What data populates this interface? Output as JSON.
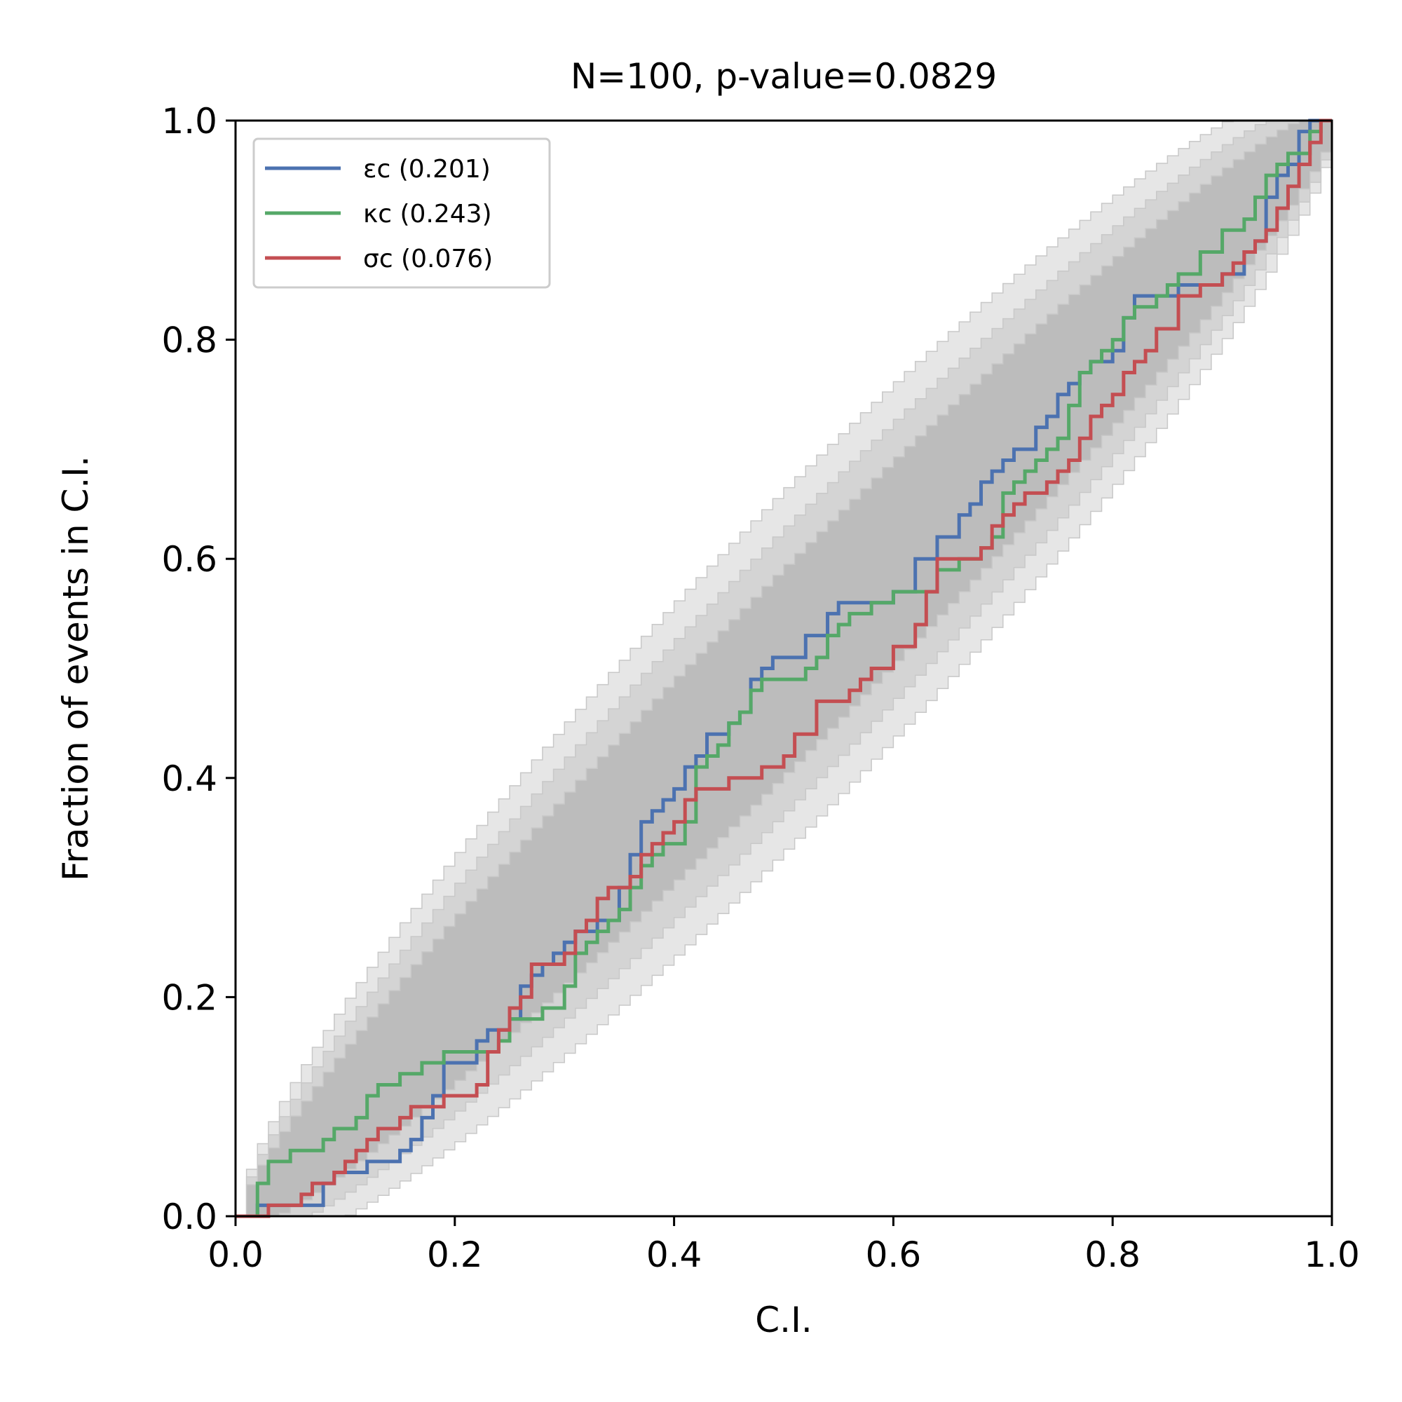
{
  "chart_data": {
    "type": "line",
    "title": "N=100, p-value=0.0829",
    "xlabel": "C.I.",
    "ylabel": "Fraction of events in C.I.",
    "xlim": [
      0,
      1
    ],
    "ylim": [
      0,
      1
    ],
    "xticks": [
      "0.0",
      "0.2",
      "0.4",
      "0.6",
      "0.8",
      "1.0"
    ],
    "yticks": [
      "0.0",
      "0.2",
      "0.4",
      "0.6",
      "0.8",
      "1.0"
    ],
    "grid": false,
    "legend_position": "top-left",
    "confidence_bands": [
      {
        "level": "outer",
        "color": "#e6e6e6"
      },
      {
        "level": "middle",
        "color": "#d4d4d4"
      },
      {
        "level": "inner",
        "color": "#bcbcbc"
      }
    ],
    "series": [
      {
        "name": "εc (0.201)",
        "color": "#4c72b0",
        "x": [
          0.0,
          0.02,
          0.03,
          0.08,
          0.09,
          0.1,
          0.12,
          0.14,
          0.15,
          0.16,
          0.17,
          0.18,
          0.19,
          0.22,
          0.23,
          0.24,
          0.25,
          0.26,
          0.27,
          0.28,
          0.29,
          0.3,
          0.31,
          0.33,
          0.35,
          0.36,
          0.37,
          0.38,
          0.39,
          0.4,
          0.41,
          0.42,
          0.43,
          0.45,
          0.46,
          0.47,
          0.48,
          0.49,
          0.5,
          0.52,
          0.54,
          0.55,
          0.57,
          0.6,
          0.62,
          0.64,
          0.66,
          0.67,
          0.68,
          0.69,
          0.7,
          0.71,
          0.72,
          0.73,
          0.74,
          0.75,
          0.76,
          0.77,
          0.78,
          0.79,
          0.8,
          0.81,
          0.82,
          0.83,
          0.84,
          0.86,
          0.88,
          0.9,
          0.92,
          0.93,
          0.94,
          0.95,
          0.96,
          0.97,
          0.98,
          0.99,
          1.0
        ],
        "y": [
          0.0,
          0.01,
          0.01,
          0.03,
          0.04,
          0.04,
          0.05,
          0.05,
          0.06,
          0.07,
          0.09,
          0.11,
          0.14,
          0.16,
          0.17,
          0.17,
          0.18,
          0.21,
          0.22,
          0.23,
          0.24,
          0.25,
          0.26,
          0.27,
          0.3,
          0.33,
          0.36,
          0.37,
          0.38,
          0.39,
          0.41,
          0.42,
          0.44,
          0.45,
          0.46,
          0.49,
          0.5,
          0.51,
          0.51,
          0.53,
          0.55,
          0.56,
          0.56,
          0.57,
          0.6,
          0.62,
          0.64,
          0.65,
          0.67,
          0.68,
          0.69,
          0.7,
          0.7,
          0.72,
          0.73,
          0.75,
          0.76,
          0.77,
          0.78,
          0.78,
          0.79,
          0.82,
          0.84,
          0.84,
          0.84,
          0.85,
          0.85,
          0.86,
          0.88,
          0.89,
          0.93,
          0.95,
          0.96,
          0.99,
          1.0,
          1.0,
          1.0
        ]
      },
      {
        "name": "κc (0.243)",
        "color": "#55a868",
        "x": [
          0.0,
          0.01,
          0.02,
          0.03,
          0.05,
          0.07,
          0.08,
          0.09,
          0.11,
          0.12,
          0.13,
          0.15,
          0.17,
          0.19,
          0.21,
          0.23,
          0.24,
          0.25,
          0.26,
          0.27,
          0.28,
          0.3,
          0.31,
          0.32,
          0.33,
          0.34,
          0.35,
          0.36,
          0.37,
          0.38,
          0.39,
          0.41,
          0.42,
          0.43,
          0.44,
          0.45,
          0.46,
          0.47,
          0.48,
          0.5,
          0.52,
          0.53,
          0.54,
          0.55,
          0.56,
          0.58,
          0.6,
          0.62,
          0.64,
          0.66,
          0.68,
          0.69,
          0.7,
          0.71,
          0.72,
          0.73,
          0.74,
          0.75,
          0.76,
          0.77,
          0.78,
          0.79,
          0.8,
          0.81,
          0.82,
          0.83,
          0.84,
          0.85,
          0.86,
          0.88,
          0.9,
          0.92,
          0.93,
          0.94,
          0.95,
          0.96,
          0.98,
          0.99,
          1.0
        ],
        "y": [
          0.0,
          0.0,
          0.03,
          0.05,
          0.06,
          0.06,
          0.07,
          0.08,
          0.09,
          0.11,
          0.12,
          0.13,
          0.14,
          0.15,
          0.15,
          0.15,
          0.16,
          0.18,
          0.18,
          0.18,
          0.19,
          0.21,
          0.24,
          0.25,
          0.26,
          0.27,
          0.28,
          0.3,
          0.32,
          0.33,
          0.34,
          0.36,
          0.41,
          0.42,
          0.43,
          0.45,
          0.46,
          0.48,
          0.49,
          0.49,
          0.5,
          0.51,
          0.53,
          0.54,
          0.55,
          0.56,
          0.57,
          0.57,
          0.59,
          0.6,
          0.61,
          0.62,
          0.66,
          0.67,
          0.68,
          0.69,
          0.7,
          0.71,
          0.74,
          0.77,
          0.78,
          0.79,
          0.8,
          0.82,
          0.83,
          0.83,
          0.84,
          0.85,
          0.86,
          0.88,
          0.9,
          0.91,
          0.93,
          0.95,
          0.96,
          0.97,
          0.99,
          1.0,
          1.0
        ]
      },
      {
        "name": "σc (0.076)",
        "color": "#c44e52",
        "x": [
          0.0,
          0.01,
          0.03,
          0.06,
          0.07,
          0.09,
          0.1,
          0.11,
          0.12,
          0.13,
          0.15,
          0.16,
          0.18,
          0.19,
          0.22,
          0.23,
          0.24,
          0.25,
          0.26,
          0.27,
          0.28,
          0.3,
          0.31,
          0.32,
          0.33,
          0.34,
          0.36,
          0.37,
          0.38,
          0.39,
          0.4,
          0.41,
          0.42,
          0.43,
          0.45,
          0.48,
          0.5,
          0.51,
          0.53,
          0.56,
          0.57,
          0.58,
          0.6,
          0.62,
          0.63,
          0.64,
          0.66,
          0.68,
          0.69,
          0.7,
          0.71,
          0.72,
          0.73,
          0.74,
          0.75,
          0.76,
          0.77,
          0.78,
          0.79,
          0.8,
          0.81,
          0.82,
          0.83,
          0.84,
          0.86,
          0.88,
          0.9,
          0.91,
          0.92,
          0.93,
          0.94,
          0.95,
          0.96,
          0.97,
          0.98,
          0.99,
          1.0
        ],
        "y": [
          0.0,
          0.0,
          0.01,
          0.02,
          0.03,
          0.04,
          0.05,
          0.06,
          0.07,
          0.08,
          0.09,
          0.1,
          0.1,
          0.11,
          0.12,
          0.15,
          0.17,
          0.19,
          0.2,
          0.23,
          0.23,
          0.24,
          0.26,
          0.27,
          0.29,
          0.3,
          0.31,
          0.33,
          0.34,
          0.35,
          0.36,
          0.38,
          0.39,
          0.39,
          0.4,
          0.41,
          0.42,
          0.44,
          0.47,
          0.48,
          0.49,
          0.5,
          0.52,
          0.54,
          0.57,
          0.6,
          0.6,
          0.61,
          0.63,
          0.64,
          0.65,
          0.66,
          0.66,
          0.67,
          0.68,
          0.69,
          0.71,
          0.73,
          0.74,
          0.75,
          0.77,
          0.78,
          0.79,
          0.81,
          0.84,
          0.85,
          0.86,
          0.87,
          0.88,
          0.89,
          0.9,
          0.92,
          0.94,
          0.96,
          0.98,
          1.0,
          1.0
        ]
      }
    ]
  }
}
